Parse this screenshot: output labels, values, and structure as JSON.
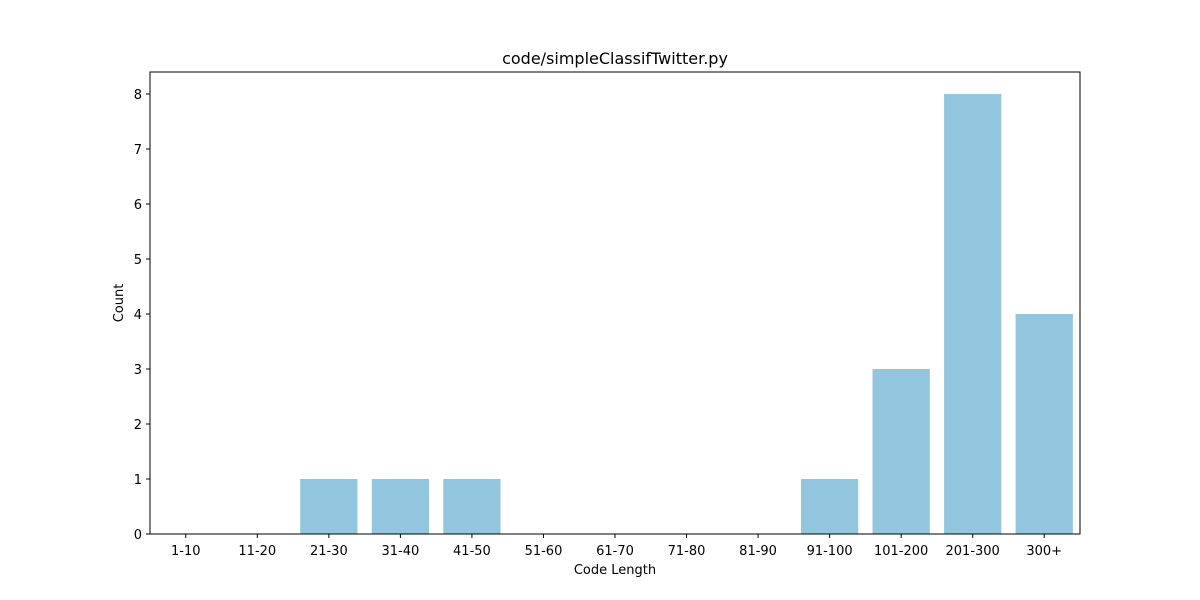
{
  "chart_data": {
    "type": "bar",
    "title": "code/simpleClassifTwitter.py",
    "xlabel": "Code Length",
    "ylabel": "Count",
    "categories": [
      "1-10",
      "11-20",
      "21-30",
      "31-40",
      "41-50",
      "51-60",
      "61-70",
      "71-80",
      "81-90",
      "91-100",
      "101-200",
      "201-300",
      "300+"
    ],
    "values": [
      0,
      0,
      1,
      1,
      1,
      0,
      0,
      0,
      0,
      1,
      3,
      8,
      4
    ],
    "yticks": [
      0,
      1,
      2,
      3,
      4,
      5,
      6,
      7,
      8
    ],
    "ylim": [
      0,
      8.4
    ],
    "grid": false,
    "bar_color": "#92c5de"
  }
}
